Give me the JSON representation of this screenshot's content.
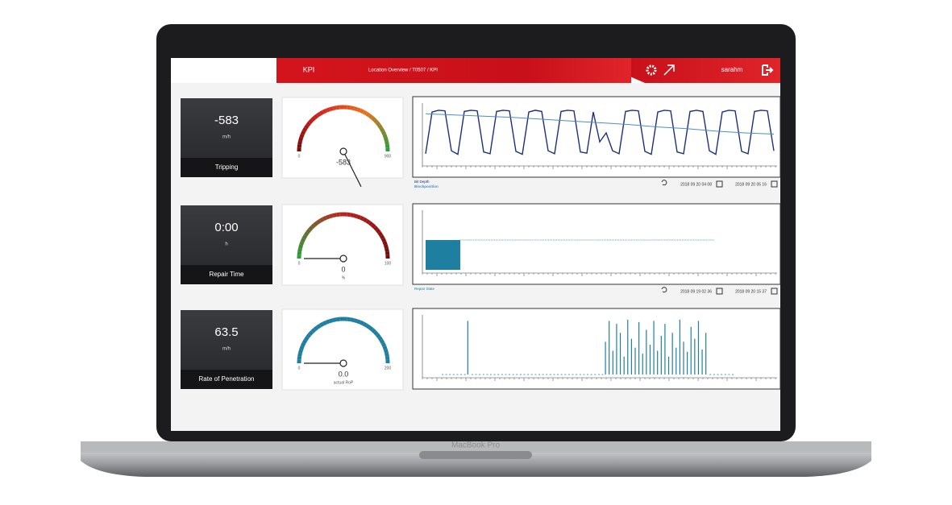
{
  "device": "MacBook Pro",
  "header": {
    "title": "KPI",
    "breadcrumb": "Location Overview / T0507 / KPI",
    "user": "sarahm"
  },
  "kpis": [
    {
      "value": -583,
      "unit": "m/h",
      "label": "Tripping",
      "gauge": {
        "min": 0,
        "max": 900,
        "value": -583,
        "colors": [
          "#7a0a0a",
          "#d8241f",
          "#e8731c",
          "#2e9d3a"
        ]
      }
    },
    {
      "value": "0:00",
      "unit": "h",
      "label": "Repair Time",
      "gauge": {
        "min": 0,
        "max": 100,
        "value": 0,
        "unit": "%",
        "colors": [
          "#2e9d3a",
          "#c0201c",
          "#6e0e0e"
        ]
      }
    },
    {
      "value": 63.5,
      "unit": "m/h",
      "label": "Rate of Penetration",
      "gauge": {
        "min": 0,
        "max": 200,
        "value": 0,
        "value_label": "0.0",
        "unit": "actual RoP",
        "colors": [
          "#1f7fa0",
          "#1f7fa0"
        ]
      }
    }
  ],
  "charts": [
    {
      "type": "line",
      "ylim": [
        0,
        100
      ],
      "series": [
        {
          "name": "Bit Depth",
          "color": "#1d2f7a",
          "values": [
            15,
            85,
            88,
            87,
            20,
            14,
            86,
            88,
            87,
            18,
            15,
            86,
            88,
            87,
            19,
            14,
            85,
            88,
            86,
            20,
            15,
            86,
            88,
            87,
            18,
            16,
            85,
            35,
            50,
            20,
            15,
            86,
            88,
            87,
            19,
            14,
            85,
            88,
            87,
            18,
            15,
            86,
            88,
            86,
            20,
            14,
            85,
            88,
            87,
            19,
            15,
            86,
            88,
            87,
            20
          ]
        },
        {
          "name": "Blockposition",
          "color": "#4a8fc0",
          "values": [
            82,
            80,
            78,
            76,
            73,
            70,
            67,
            64,
            60,
            57,
            53,
            50,
            48
          ]
        }
      ],
      "range": [
        "2018 09 20 04 08",
        "2018 09 20 05 16"
      ]
    },
    {
      "type": "bar",
      "ylim": [
        0,
        2
      ],
      "series": [
        {
          "name": "Repair State",
          "color": "#1f7fa0",
          "values": [
            1,
            1,
            1,
            1,
            1,
            1,
            1,
            0,
            0,
            0,
            0,
            0,
            0,
            0,
            0,
            0,
            0,
            0,
            0,
            0,
            0,
            0,
            0,
            0,
            0,
            0,
            0,
            0,
            0,
            0,
            0,
            0,
            0,
            0,
            0,
            0,
            0,
            0,
            0,
            0,
            0,
            0,
            0,
            0,
            0,
            0,
            0,
            0,
            0,
            0,
            0,
            0,
            0,
            0,
            0,
            0,
            0,
            0,
            0
          ]
        }
      ],
      "range": [
        "2018 09 19 02 36",
        "2018 09 20 15 37"
      ]
    },
    {
      "type": "spike",
      "ylim": [
        0,
        100
      ],
      "series": [
        {
          "name": "actual RoP",
          "color": "#1f7fa0",
          "values": [
            0,
            0,
            0,
            0,
            0,
            0,
            0,
            90,
            0,
            0,
            0,
            0,
            0,
            0,
            0,
            0,
            0,
            0,
            0,
            0,
            0,
            0,
            0,
            0,
            0,
            0,
            0,
            0,
            0,
            0,
            0,
            0,
            0,
            0,
            0,
            0,
            0,
            0,
            0,
            0,
            0,
            0,
            0,
            0,
            55,
            90,
            40,
            85,
            70,
            30,
            92,
            60,
            45,
            88,
            35,
            75,
            50,
            90,
            40,
            65,
            85,
            30,
            70,
            45,
            92,
            55,
            38,
            80,
            60,
            90,
            42,
            70,
            0,
            0,
            0,
            0,
            0,
            0,
            0
          ]
        }
      ]
    }
  ]
}
